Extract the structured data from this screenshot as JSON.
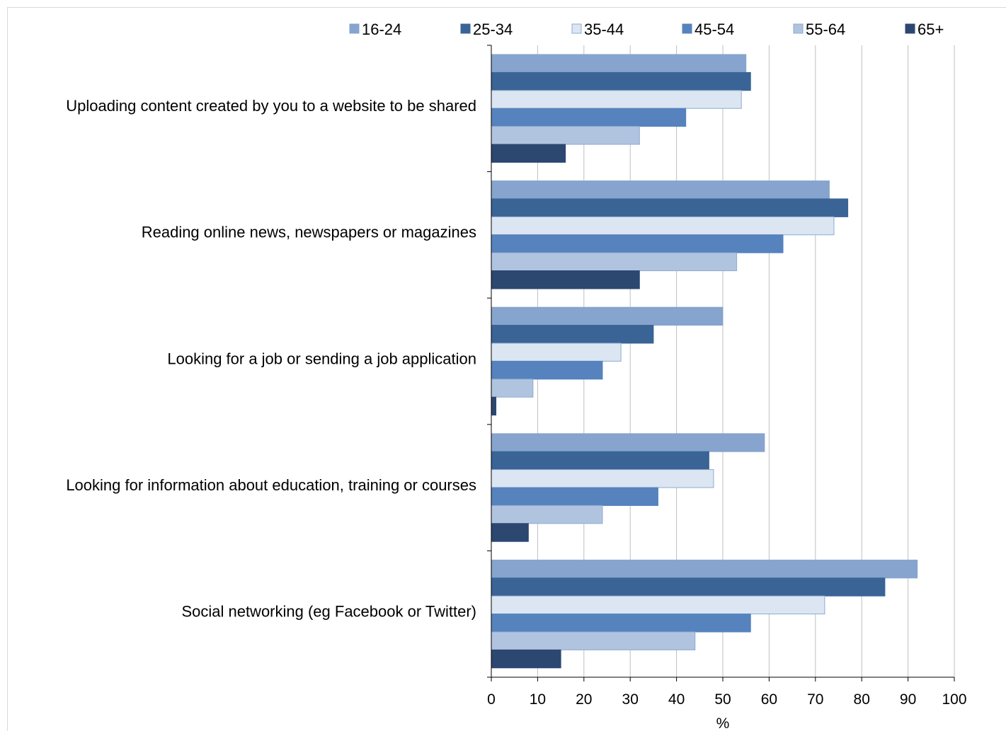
{
  "chart_data": {
    "type": "bar",
    "orientation": "horizontal",
    "categories": [
      "Uploading content created by you to a website to be shared",
      "Reading online news, newspapers or magazines",
      "Looking for a job or sending a job application",
      "Looking for information about education, training or courses",
      "Social networking (eg Facebook or Twitter)"
    ],
    "series": [
      {
        "name": "16-24",
        "color": "#86a4cd",
        "stroke": "#86a4cd",
        "values": [
          55,
          73,
          50,
          59,
          92
        ]
      },
      {
        "name": "25-34",
        "color": "#3a6496",
        "stroke": "#3a6496",
        "values": [
          56,
          77,
          35,
          47,
          85
        ]
      },
      {
        "name": "35-44",
        "color": "#dce6f2",
        "stroke": "#8eaad0",
        "values": [
          54,
          74,
          28,
          48,
          72
        ]
      },
      {
        "name": "45-54",
        "color": "#5683bd",
        "stroke": "#5683bd",
        "values": [
          42,
          63,
          24,
          36,
          56
        ]
      },
      {
        "name": "55-64",
        "color": "#b0c4e0",
        "stroke": "#8eaad0",
        "values": [
          32,
          53,
          9,
          24,
          44
        ]
      },
      {
        "name": "65+",
        "color": "#2c4770",
        "stroke": "#2c4770",
        "values": [
          16,
          32,
          1,
          8,
          15
        ]
      }
    ],
    "xlabel": "%",
    "ylabel": "",
    "xlim": [
      0,
      100
    ],
    "xticks": [
      "0",
      "10",
      "20",
      "30",
      "40",
      "50",
      "60",
      "70",
      "80",
      "90",
      "100"
    ],
    "grid": "vertical",
    "legend_position": "top"
  }
}
